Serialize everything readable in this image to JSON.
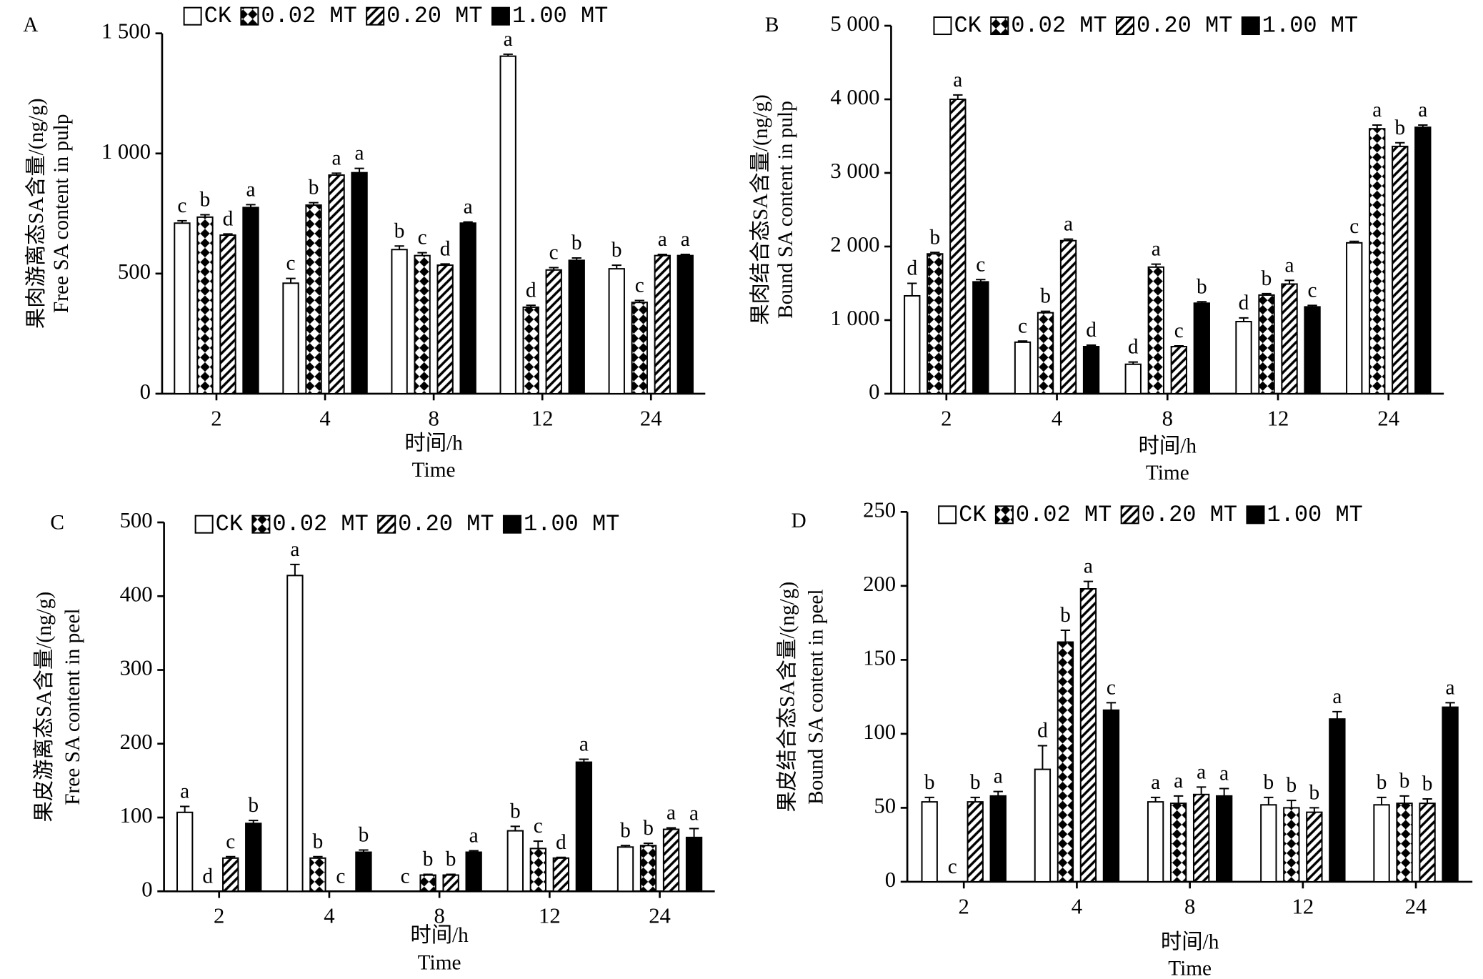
{
  "chart_data": [
    {
      "type": "bar",
      "label": "A",
      "ylabel": [
        "果肉游离态SA含量/(ng/g)",
        "Free SA content in pulp"
      ],
      "xlabel": [
        "时间/h",
        "Time"
      ],
      "categories": [
        "2",
        "4",
        "8",
        "12",
        "24"
      ],
      "ylim": [
        0,
        1500
      ],
      "yticks": [
        0,
        500,
        {
          "value": 1000,
          "label": "1 000"
        },
        {
          "value": 1500,
          "label": "1 500"
        }
      ],
      "series": [
        {
          "name": "CK",
          "color": "#ffffff",
          "pattern": "none",
          "values": [
            710,
            460,
            600,
            1405,
            520
          ],
          "errors": [
            10,
            20,
            15,
            8,
            15
          ],
          "letters": [
            "c",
            "c",
            "b",
            "a",
            "b"
          ]
        },
        {
          "name": "0.02 MT",
          "color": "#000000",
          "pattern": "checker",
          "values": [
            735,
            785,
            575,
            360,
            380
          ],
          "errors": [
            10,
            10,
            12,
            8,
            8
          ],
          "letters": [
            "b",
            "b",
            "c",
            "d",
            "c"
          ]
        },
        {
          "name": "0.20 MT",
          "color": "#000000",
          "pattern": "hatch",
          "values": [
            660,
            910,
            535,
            515,
            575
          ],
          "errors": [
            5,
            8,
            5,
            10,
            5
          ],
          "letters": [
            "d",
            "a",
            "d",
            "c",
            "a"
          ]
        },
        {
          "name": "1.00 MT",
          "color": "#000000",
          "pattern": "none",
          "values": [
            775,
            920,
            710,
            555,
            575
          ],
          "errors": [
            12,
            18,
            5,
            10,
            5
          ],
          "letters": [
            "a",
            "a",
            "a",
            "b",
            "a"
          ]
        }
      ]
    },
    {
      "type": "bar",
      "label": "B",
      "ylabel": [
        "果肉结合态SA含量/(ng/g)",
        "Bound SA content in pulp"
      ],
      "xlabel": [
        "时间/h",
        "Time"
      ],
      "categories": [
        "2",
        "4",
        "8",
        "12",
        "24"
      ],
      "ylim": [
        0,
        5000
      ],
      "yticks": [
        0,
        {
          "value": 1000,
          "label": "1 000"
        },
        {
          "value": 2000,
          "label": "2 000"
        },
        {
          "value": 3000,
          "label": "3 000"
        },
        {
          "value": 4000,
          "label": "4 000"
        },
        {
          "value": 5000,
          "label": "5 000"
        }
      ],
      "series": [
        {
          "name": "CK",
          "color": "#ffffff",
          "pattern": "none",
          "values": [
            1330,
            700,
            400,
            980,
            2050
          ],
          "errors": [
            170,
            15,
            30,
            50,
            20
          ],
          "letters": [
            "d",
            "c",
            "d",
            "d",
            "c"
          ]
        },
        {
          "name": "0.02 MT",
          "color": "#000000",
          "pattern": "checker",
          "values": [
            1900,
            1100,
            1720,
            1340,
            3600
          ],
          "errors": [
            20,
            20,
            40,
            20,
            50
          ],
          "letters": [
            "b",
            "b",
            "a",
            "b",
            "a"
          ]
        },
        {
          "name": "0.20 MT",
          "color": "#000000",
          "pattern": "hatch",
          "values": [
            4000,
            2080,
            640,
            1490,
            3360
          ],
          "errors": [
            60,
            20,
            10,
            50,
            50
          ],
          "letters": [
            "a",
            "a",
            "c",
            "a",
            "b"
          ]
        },
        {
          "name": "1.00 MT",
          "color": "#000000",
          "pattern": "none",
          "values": [
            1520,
            640,
            1230,
            1180,
            3620
          ],
          "errors": [
            30,
            20,
            20,
            20,
            30
          ],
          "letters": [
            "c",
            "d",
            "b",
            "c",
            "a"
          ]
        }
      ]
    },
    {
      "type": "bar",
      "label": "C",
      "ylabel": [
        "果皮游离态SA含量/(ng/g)",
        "Free SA content in peel"
      ],
      "xlabel": [
        "时间/h",
        "Time"
      ],
      "categories": [
        "2",
        "4",
        "8",
        "12",
        "24"
      ],
      "ylim": [
        0,
        500
      ],
      "yticks": [
        0,
        100,
        200,
        300,
        400,
        500
      ],
      "series": [
        {
          "name": "CK",
          "color": "#ffffff",
          "pattern": "none",
          "values": [
            107,
            428,
            0,
            82,
            60
          ],
          "errors": [
            8,
            15,
            0,
            6,
            2
          ],
          "letters": [
            "a",
            "a",
            "c",
            "b",
            "b"
          ]
        },
        {
          "name": "0.02 MT",
          "color": "#000000",
          "pattern": "checker",
          "values": [
            0,
            45,
            22,
            58,
            62
          ],
          "errors": [
            0,
            2,
            1,
            10,
            3
          ],
          "letters": [
            "d",
            "b",
            "b",
            "c",
            "b"
          ]
        },
        {
          "name": "0.20 MT",
          "color": "#000000",
          "pattern": "hatch",
          "values": [
            45,
            0,
            22,
            45,
            84
          ],
          "errors": [
            2,
            0,
            1,
            1,
            2
          ],
          "letters": [
            "c",
            "c",
            "b",
            "d",
            "a"
          ]
        },
        {
          "name": "1.00 MT",
          "color": "#000000",
          "pattern": "none",
          "values": [
            92,
            53,
            53,
            175,
            73
          ],
          "errors": [
            4,
            3,
            2,
            4,
            12
          ],
          "letters": [
            "b",
            "b",
            "a",
            "a",
            "a"
          ]
        }
      ]
    },
    {
      "type": "bar",
      "label": "D",
      "ylabel": [
        "果皮结合态SA含量/(ng/g)",
        "Bound SA content in peel"
      ],
      "xlabel": [
        "时间/h",
        "Time"
      ],
      "categories": [
        "2",
        "4",
        "8",
        "12",
        "24"
      ],
      "ylim": [
        0,
        250
      ],
      "yticks": [
        0,
        50,
        100,
        150,
        200,
        250
      ],
      "series": [
        {
          "name": "CK",
          "color": "#ffffff",
          "pattern": "none",
          "values": [
            54,
            76,
            54,
            52,
            52
          ],
          "errors": [
            3,
            16,
            3,
            5,
            5
          ],
          "letters": [
            "b",
            "d",
            "a",
            "b",
            "b"
          ]
        },
        {
          "name": "0.02 MT",
          "color": "#000000",
          "pattern": "checker",
          "values": [
            0,
            162,
            53,
            50,
            53
          ],
          "errors": [
            0,
            8,
            5,
            5,
            5
          ],
          "letters": [
            "c",
            "b",
            "a",
            "b",
            "b"
          ]
        },
        {
          "name": "0.20 MT",
          "color": "#000000",
          "pattern": "hatch",
          "values": [
            54,
            198,
            59,
            47,
            53
          ],
          "errors": [
            3,
            5,
            5,
            3,
            3
          ],
          "letters": [
            "b",
            "a",
            "a",
            "b",
            "b"
          ]
        },
        {
          "name": "1.00 MT",
          "color": "#000000",
          "pattern": "none",
          "values": [
            58,
            116,
            58,
            110,
            118
          ],
          "errors": [
            3,
            5,
            5,
            5,
            3
          ],
          "letters": [
            "a",
            "c",
            "a",
            "a",
            "a"
          ]
        }
      ]
    }
  ]
}
